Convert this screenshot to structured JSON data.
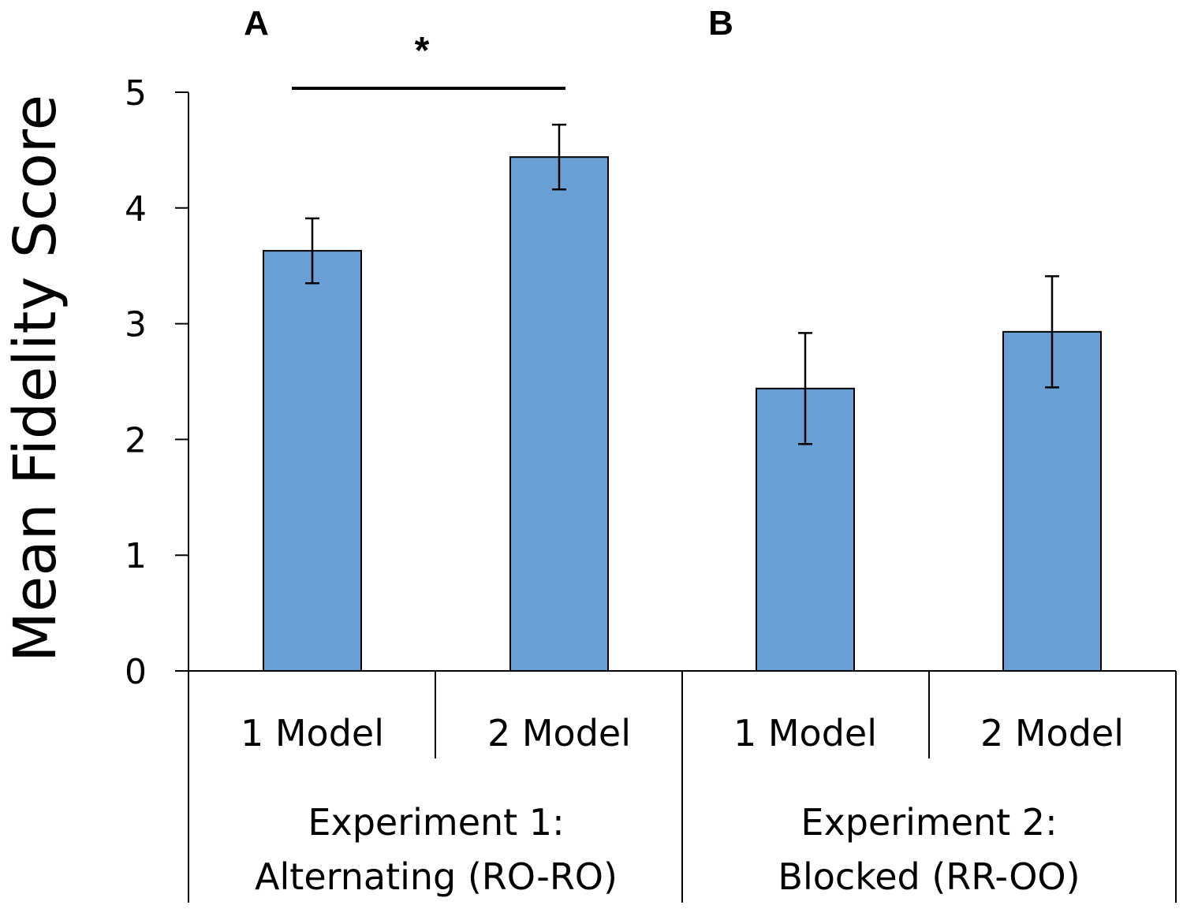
{
  "chart_data": {
    "type": "bar",
    "ylabel": "Mean Fidelity Score",
    "ylim": [
      0,
      5
    ],
    "yticks": [
      "0",
      "1",
      "2",
      "3",
      "4",
      "5"
    ],
    "panel_letters": [
      "A",
      "B"
    ],
    "groups": [
      {
        "label_line1": "Experiment 1:",
        "label_line2": "Alternating (RO-RO)",
        "categories": [
          "1 Model",
          "2 Model"
        ],
        "values": [
          3.63,
          4.44
        ],
        "errors": [
          0.28,
          0.28
        ]
      },
      {
        "label_line1": "Experiment 2:",
        "label_line2": "Blocked (RR-OO)",
        "categories": [
          "1 Model",
          "2 Model"
        ],
        "values": [
          2.44,
          2.93
        ],
        "errors": [
          0.48,
          0.48
        ]
      }
    ],
    "significance": {
      "symbol": "*",
      "between": [
        "1 Model",
        "2 Model"
      ],
      "group": 0
    },
    "bar_color": "#6a9fd5",
    "bar_edge_color": "#000000",
    "grid": false
  }
}
